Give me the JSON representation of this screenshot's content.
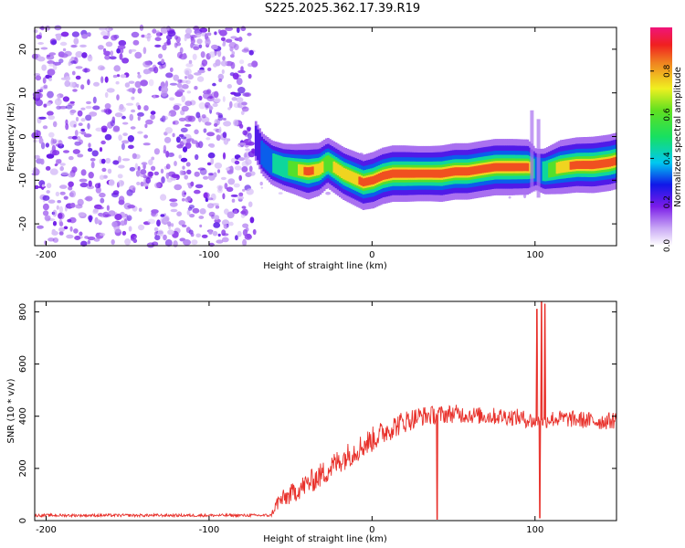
{
  "title": "S225.2025.362.17.39.R19",
  "colors": {
    "line": "#e8302a",
    "speckle": "#8a3cf0",
    "frame": "#000000"
  },
  "chart_data": [
    {
      "type": "heatmap",
      "title": "S225.2025.362.17.39.R19",
      "xlabel": "Height of straight line (km)",
      "ylabel": "Frequency (Hz)",
      "xlim": [
        -207,
        150
      ],
      "ylim": [
        -25,
        25
      ],
      "xticks": [
        -200,
        -100,
        0,
        100
      ],
      "yticks": [
        -20,
        -10,
        0,
        10,
        20
      ],
      "colorbar": {
        "label": "Normalized spectral amplitude",
        "range": [
          0,
          1
        ],
        "ticks": [
          0.0,
          0.2,
          0.4,
          0.6,
          0.8
        ]
      },
      "noise_region": {
        "x_from": -207,
        "x_to": -72,
        "description_of_values": "random low-amplitude speckle"
      },
      "ridge": {
        "x": [
          -72,
          -68,
          -62,
          -55,
          -48,
          -40,
          -33,
          -28,
          -24,
          -18,
          -12,
          -6,
          0,
          6,
          12,
          20,
          28,
          35,
          42,
          50,
          58,
          66,
          75,
          85,
          95,
          100,
          105,
          115,
          125,
          135,
          145,
          150
        ],
        "y": [
          -1,
          -4,
          -6,
          -7,
          -7.5,
          -8,
          -7.5,
          -6,
          -7,
          -8.5,
          -9.5,
          -10.5,
          -10,
          -9,
          -8.5,
          -8.5,
          -8.5,
          -8.5,
          -8.5,
          -8,
          -8,
          -7.5,
          -7,
          -7,
          -7,
          -7.5,
          -8,
          -7,
          -6.5,
          -6.5,
          -6,
          -5.5
        ],
        "amplitude": [
          0.25,
          0.35,
          0.45,
          0.55,
          0.7,
          0.95,
          0.8,
          0.7,
          0.75,
          0.8,
          0.85,
          0.9,
          0.95,
          0.95,
          0.95,
          0.95,
          0.9,
          0.9,
          0.95,
          0.95,
          0.95,
          0.95,
          0.95,
          0.95,
          0.9,
          0.3,
          0.5,
          0.85,
          0.9,
          0.95,
          0.95,
          0.95
        ]
      }
    },
    {
      "type": "line",
      "xlabel": "Height of straight line (km)",
      "ylabel": "SNR (10 * v/v)",
      "xlim": [
        -207,
        150
      ],
      "ylim": [
        0,
        840
      ],
      "xticks": [
        -200,
        -100,
        0,
        100
      ],
      "yticks": [
        0,
        200,
        400,
        600,
        800
      ],
      "envelope": {
        "x": [
          -207,
          -150,
          -100,
          -62,
          -58,
          -50,
          -40,
          -30,
          -20,
          -10,
          0,
          10,
          20,
          30,
          40,
          50,
          60,
          70,
          80,
          90,
          100,
          110,
          120,
          130,
          140,
          150
        ],
        "mean": [
          20,
          20,
          20,
          20,
          70,
          100,
          140,
          180,
          230,
          270,
          310,
          350,
          380,
          400,
          405,
          410,
          405,
          400,
          400,
          395,
          380,
          390,
          390,
          385,
          380,
          385
        ],
        "spread": [
          10,
          10,
          10,
          10,
          60,
          70,
          80,
          90,
          90,
          90,
          90,
          85,
          80,
          70,
          65,
          65,
          60,
          60,
          60,
          60,
          60,
          60,
          60,
          60,
          60,
          60
        ]
      },
      "spikes": [
        {
          "x": 40,
          "y": 5
        },
        {
          "x": 101,
          "y": 810
        },
        {
          "x": 103,
          "y": 10
        },
        {
          "x": 104,
          "y": 840
        },
        {
          "x": 106,
          "y": 830
        }
      ]
    }
  ]
}
